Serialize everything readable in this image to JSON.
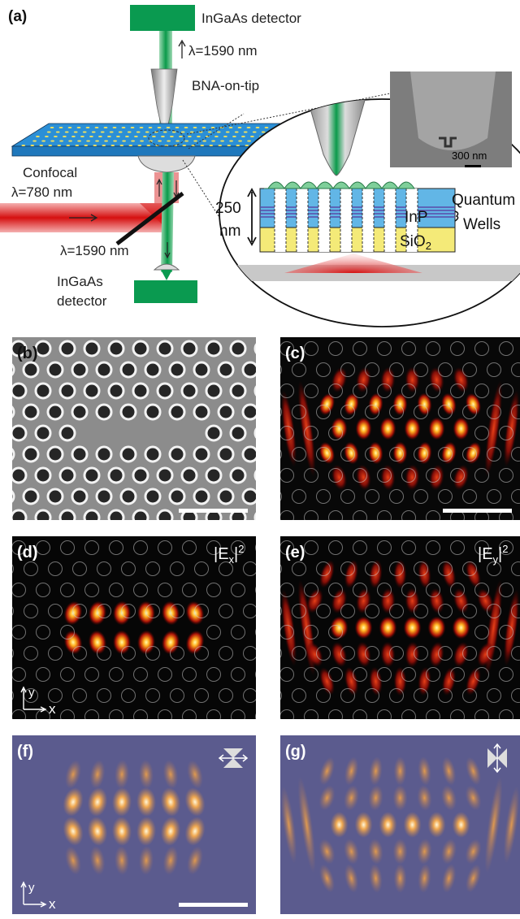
{
  "panel_a": {
    "label": "(a)",
    "top_detector": "InGaAs detector",
    "top_wavelength": "λ=1590 nm",
    "tip": "BNA-on-tip",
    "confocal": "Confocal",
    "pump_wavelength": "λ=780 nm",
    "bottom_wavelength": "λ=1590 nm",
    "bottom_detector": [
      "InGaAs",
      "detector"
    ],
    "inset": {
      "thickness": [
        "250",
        "nm"
      ],
      "quantum_wells": [
        "Quantum",
        "Wells"
      ],
      "inp": "InP",
      "substrate": {
        "base": "SiO",
        "sub": "2"
      },
      "scale_bar": "300 nm"
    }
  },
  "panels": [
    {
      "label": "(b)"
    },
    {
      "label": "(c)"
    },
    {
      "label": "(d)",
      "field": {
        "open": "|E",
        "sub": "x",
        "close": "|",
        "sup": "2"
      },
      "axes": [
        "y",
        "x"
      ]
    },
    {
      "label": "(e)",
      "field": {
        "open": "|E",
        "sub": "y",
        "close": "|",
        "sup": "2"
      }
    },
    {
      "label": "(f)",
      "axes": [
        "y",
        "x"
      ]
    },
    {
      "label": "(g)"
    }
  ]
}
